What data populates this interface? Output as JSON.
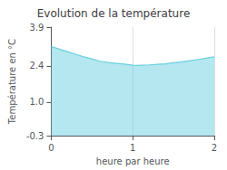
{
  "chart_data": {
    "type": "area",
    "title": "Evolution de la température",
    "xlabel": "heure par heure",
    "ylabel": "Température en °C",
    "x": [
      0,
      0.1,
      0.2,
      0.3,
      0.4,
      0.5,
      0.6,
      0.7,
      0.8,
      0.9,
      1.0,
      1.05,
      1.1,
      1.2,
      1.3,
      1.4,
      1.5,
      1.6,
      1.7,
      1.8,
      1.9,
      2.0
    ],
    "values": [
      3.15,
      3.05,
      2.95,
      2.85,
      2.75,
      2.67,
      2.58,
      2.53,
      2.5,
      2.47,
      2.43,
      2.42,
      2.43,
      2.44,
      2.46,
      2.48,
      2.52,
      2.56,
      2.6,
      2.65,
      2.7,
      2.75
    ],
    "color": "#6acfdf",
    "xlim": [
      0,
      2
    ],
    "ylim": [
      -0.3,
      3.9
    ],
    "xticks": [
      0,
      1,
      2
    ],
    "yticks": [
      -0.3,
      {
        "value": 1,
        "label": "1.0"
      },
      2.4,
      3.9
    ],
    "grid": "x"
  }
}
